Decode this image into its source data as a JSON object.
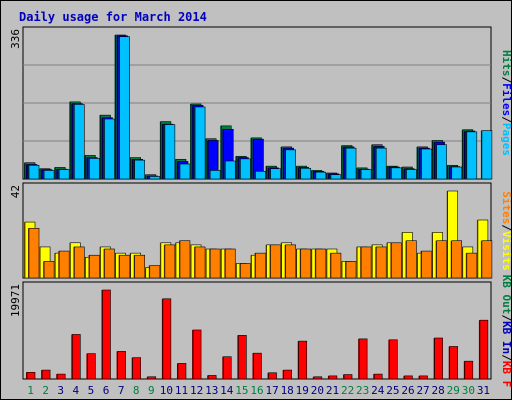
{
  "title": "Daily usage for March 2014",
  "colors": {
    "background": "#c0c0c0",
    "panel": "#c0c0c0",
    "title": "#0000c0",
    "grid": "#808080",
    "pages": "#00c0ff",
    "files": "#0000ff",
    "hits": "#008040",
    "visits": "#ffff00",
    "sites": "#ff8000",
    "kbf": "#ff0000",
    "kbin": "#0000c0",
    "kbout": "#008040",
    "weekend": "#008040",
    "weekday": "#000080"
  },
  "chart_data": [
    {
      "type": "bar",
      "panel": "top",
      "ymax_label": "336",
      "ylim": [
        0,
        336
      ],
      "legend": [
        {
          "text": "Pages",
          "color": "#00c0ff"
        },
        {
          "text": "/",
          "color": "#000000"
        },
        {
          "text": "Files",
          "color": "#0000ff"
        },
        {
          "text": "/",
          "color": "#000000"
        },
        {
          "text": "Hits",
          "color": "#008040"
        }
      ],
      "categories": [
        "1",
        "2",
        "3",
        "4",
        "5",
        "6",
        "7",
        "8",
        "9",
        "10",
        "11",
        "12",
        "13",
        "14",
        "15",
        "16",
        "17",
        "18",
        "19",
        "20",
        "21",
        "22",
        "23",
        "24",
        "25",
        "26",
        "27",
        "28",
        "29",
        "30",
        "31"
      ],
      "series": [
        {
          "name": "Hits",
          "values": [
            38,
            24,
            27,
            180,
            55,
            149,
            336,
            50,
            10,
            134,
            46,
            175,
            94,
            124,
            53,
            96,
            30,
            75,
            30,
            20,
            14,
            78,
            26,
            80,
            30,
            28,
            75,
            90,
            32,
            115,
            0
          ]
        },
        {
          "name": "Files",
          "values": [
            34,
            22,
            23,
            176,
            50,
            143,
            334,
            46,
            7,
            128,
            41,
            172,
            90,
            116,
            50,
            93,
            26,
            72,
            27,
            18,
            12,
            75,
            23,
            76,
            28,
            24,
            72,
            86,
            29,
            112,
            0
          ]
        },
        {
          "name": "Pages",
          "values": [
            32,
            20,
            22,
            174,
            48,
            140,
            332,
            44,
            6,
            127,
            35,
            168,
            20,
            42,
            47,
            18,
            24,
            68,
            25,
            16,
            10,
            72,
            22,
            72,
            26,
            22,
            70,
            80,
            28,
            110,
            113
          ]
        }
      ]
    },
    {
      "type": "bar",
      "panel": "middle",
      "ymax_label": "42",
      "ylim": [
        0,
        42
      ],
      "legend": [
        {
          "text": "Visits",
          "color": "#ffff00"
        },
        {
          "text": "/",
          "color": "#000000"
        },
        {
          "text": "Sites",
          "color": "#ff8000"
        }
      ],
      "categories": [
        "1",
        "2",
        "3",
        "4",
        "5",
        "6",
        "7",
        "8",
        "9",
        "10",
        "11",
        "12",
        "13",
        "14",
        "15",
        "16",
        "17",
        "18",
        "19",
        "20",
        "21",
        "22",
        "23",
        "24",
        "25",
        "26",
        "27",
        "28",
        "29",
        "30",
        "31"
      ],
      "series": [
        {
          "name": "Visits",
          "values": [
            27,
            15,
            12,
            17,
            10,
            15,
            12,
            12,
            5,
            17,
            17,
            16,
            14,
            14,
            7,
            11,
            16,
            17,
            14,
            14,
            14,
            8,
            15,
            16,
            17,
            22,
            12,
            22,
            42,
            15,
            28
          ]
        },
        {
          "name": "Sites",
          "values": [
            24,
            8,
            13,
            15,
            11,
            14,
            11,
            11,
            6,
            16,
            18,
            15,
            14,
            14,
            7,
            12,
            16,
            16,
            14,
            14,
            12,
            8,
            15,
            15,
            17,
            18,
            13,
            18,
            18,
            12,
            18
          ]
        }
      ]
    },
    {
      "type": "bar",
      "panel": "bottom",
      "ymax_label": "19971",
      "ylim": [
        0,
        19971
      ],
      "legend": [
        {
          "text": "KB F",
          "color": "#ff0000"
        },
        {
          "text": "/",
          "color": "#000000"
        },
        {
          "text": "KB In",
          "color": "#0000c0"
        },
        {
          "text": "/",
          "color": "#000000"
        },
        {
          "text": "KB Out",
          "color": "#008040"
        }
      ],
      "categories": [
        "1",
        "2",
        "3",
        "4",
        "5",
        "6",
        "7",
        "8",
        "9",
        "10",
        "11",
        "12",
        "13",
        "14",
        "15",
        "16",
        "17",
        "18",
        "19",
        "20",
        "21",
        "22",
        "23",
        "24",
        "25",
        "26",
        "27",
        "28",
        "29",
        "30",
        "31"
      ],
      "series": [
        {
          "name": "KB F",
          "values": [
            1500,
            2000,
            1100,
            10000,
            5700,
            19971,
            6200,
            4800,
            500,
            18000,
            3500,
            11000,
            800,
            5000,
            9800,
            5800,
            1400,
            2000,
            8500,
            500,
            700,
            1000,
            9000,
            1100,
            8800,
            700,
            700,
            9200,
            7300,
            4000,
            13200
          ]
        }
      ]
    }
  ],
  "x_axis": {
    "labels": [
      "1",
      "2",
      "3",
      "4",
      "5",
      "6",
      "7",
      "8",
      "9",
      "10",
      "11",
      "12",
      "13",
      "14",
      "15",
      "16",
      "17",
      "18",
      "19",
      "20",
      "21",
      "22",
      "23",
      "24",
      "25",
      "26",
      "27",
      "28",
      "29",
      "30",
      "31"
    ],
    "weekend_days": [
      1,
      2,
      8,
      9,
      15,
      16,
      22,
      23,
      29,
      30
    ]
  }
}
